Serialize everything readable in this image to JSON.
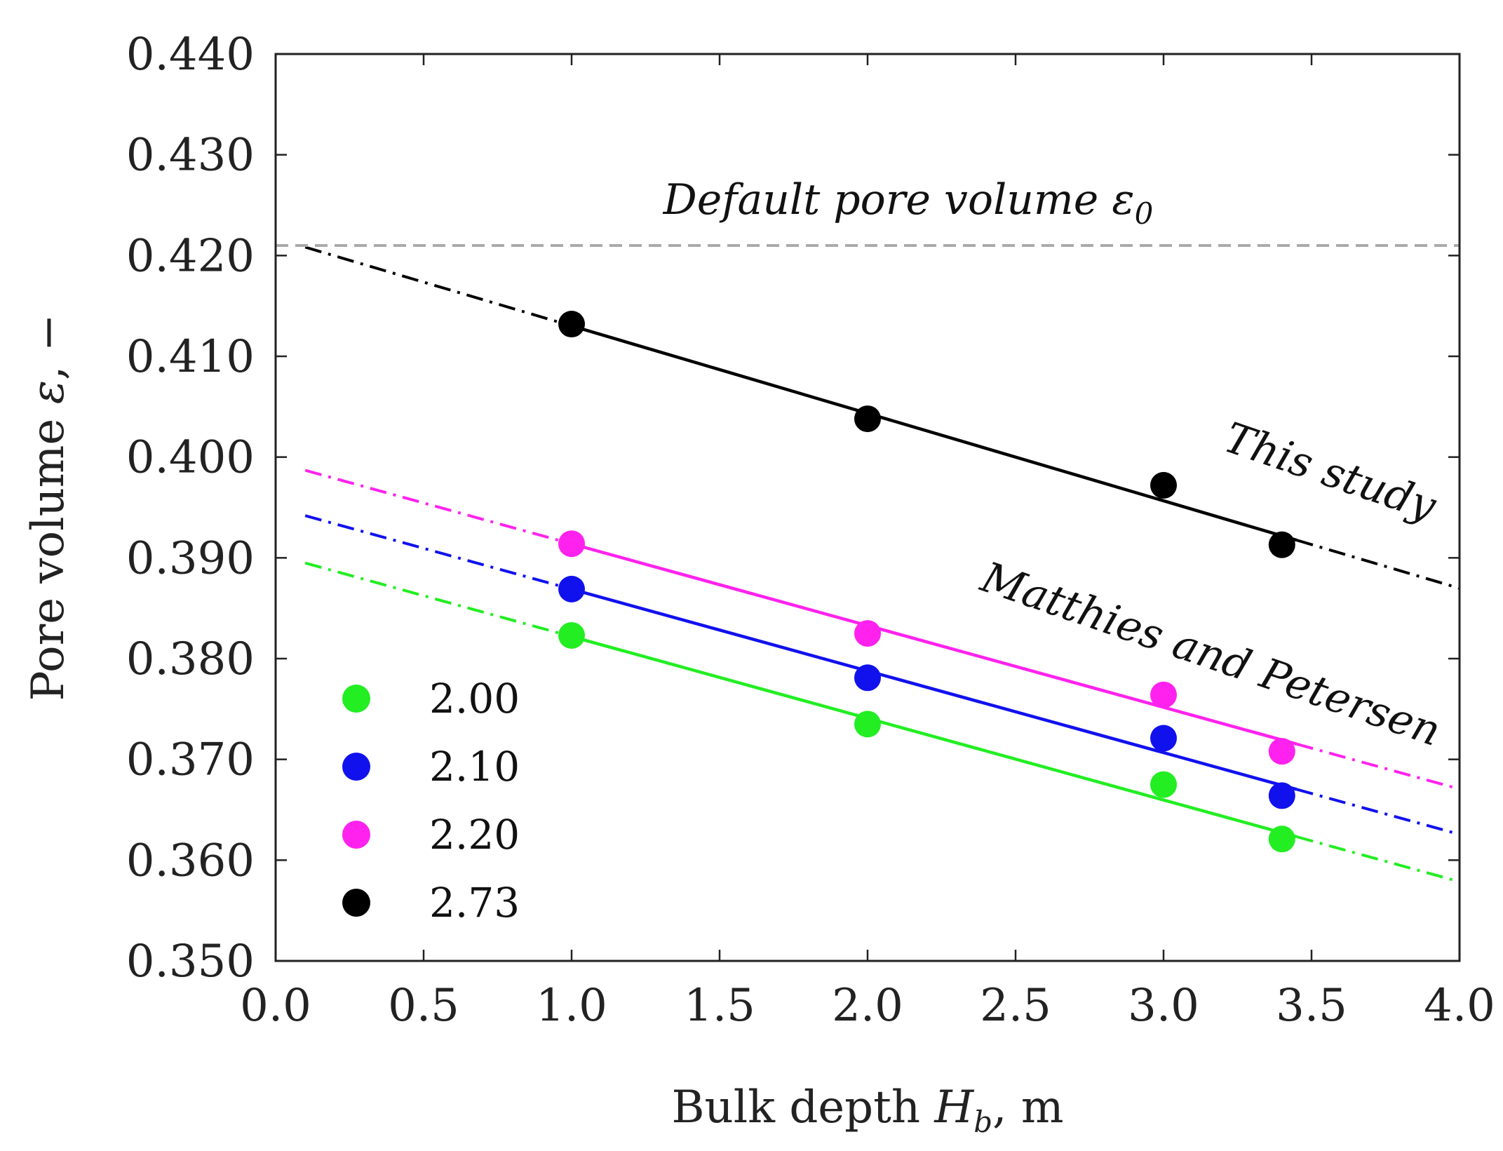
{
  "chart_data": {
    "type": "scatter",
    "title": "",
    "xlabel_main": "Bulk depth ",
    "xlabel_var": "H",
    "xlabel_sub": "b",
    "xlabel_unit": ", m",
    "ylabel_main": "Pore volume ",
    "ylabel_var": "ε",
    "ylabel_unit": ", −",
    "xlim": [
      0.0,
      4.0
    ],
    "ylim": [
      0.35,
      0.44
    ],
    "xticks": [
      "0.0",
      "0.5",
      "1.0",
      "1.5",
      "2.0",
      "2.5",
      "3.0",
      "3.5",
      "4.0"
    ],
    "xtick_values": [
      0.0,
      0.5,
      1.0,
      1.5,
      2.0,
      2.5,
      3.0,
      3.5,
      4.0
    ],
    "yticks": [
      "0.350",
      "0.360",
      "0.370",
      "0.380",
      "0.390",
      "0.400",
      "0.410",
      "0.420",
      "0.430",
      "0.440"
    ],
    "ytick_values": [
      0.35,
      0.36,
      0.37,
      0.38,
      0.39,
      0.4,
      0.41,
      0.42,
      0.43,
      0.44
    ],
    "default_line": {
      "y": 0.421,
      "color": "#aaaaaa"
    },
    "annotations": {
      "default": "Default pore volume ε",
      "default_sub": "0",
      "this_study": "This study",
      "matthies": "Matthies and Petersen"
    },
    "legend_location": "lower-left",
    "series": [
      {
        "name": "2.00",
        "color": "#22ee22",
        "x": [
          1.0,
          2.0,
          3.0,
          3.4
        ],
        "y": [
          0.3823,
          0.3735,
          0.3675,
          0.3621
        ],
        "fit_intercept": 0.3903,
        "fit_slope": -0.00811,
        "fit_solid": [
          1.0,
          3.45
        ],
        "fit_dashed": [
          [
            0.1,
            1.0
          ],
          [
            3.45,
            4.0
          ]
        ]
      },
      {
        "name": "2.10",
        "color": "#1111ee",
        "x": [
          1.0,
          2.0,
          3.0,
          3.4
        ],
        "y": [
          0.3869,
          0.3781,
          0.3721,
          0.3664
        ],
        "fit_intercept": 0.395,
        "fit_slope": -0.00811,
        "fit_solid": [
          1.0,
          3.45
        ],
        "fit_dashed": [
          [
            0.1,
            1.0
          ],
          [
            3.45,
            4.0
          ]
        ]
      },
      {
        "name": "2.20",
        "color": "#ff22ee",
        "x": [
          1.0,
          2.0,
          3.0,
          3.4
        ],
        "y": [
          0.3914,
          0.3825,
          0.3764,
          0.3708
        ],
        "fit_intercept": 0.3995,
        "fit_slope": -0.00811,
        "fit_solid": [
          1.0,
          3.45
        ],
        "fit_dashed": [
          [
            0.1,
            1.0
          ],
          [
            3.45,
            4.0
          ]
        ]
      },
      {
        "name": "2.73",
        "color": "#000000",
        "x": [
          1.0,
          2.0,
          3.0,
          3.4
        ],
        "y": [
          0.4132,
          0.4038,
          0.3972,
          0.3913
        ],
        "fit_intercept": 0.4217,
        "fit_slope": -0.00868,
        "fit_solid": [
          1.0,
          3.45
        ],
        "fit_dashed": [
          [
            0.1,
            1.0
          ],
          [
            3.45,
            4.0
          ]
        ]
      }
    ]
  }
}
